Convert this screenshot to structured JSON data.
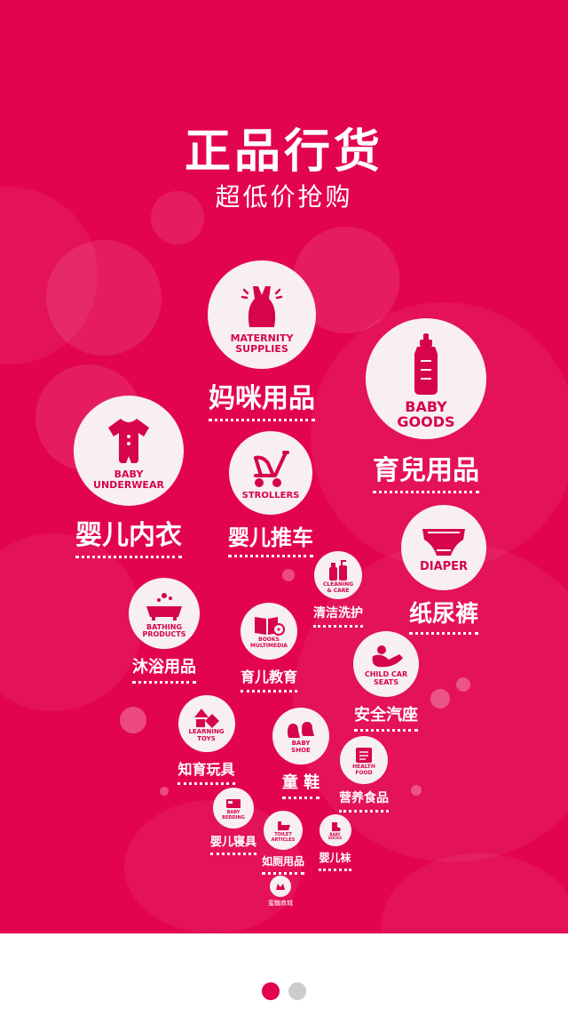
{
  "header": {
    "title": "正品行货",
    "subtitle": "超低价抢购"
  },
  "categories": [
    {
      "en": "MATERNITY\nSUPPLIES",
      "cn": "妈咪用品"
    },
    {
      "en": "BABY\nGOODS",
      "cn": "育兒用品"
    },
    {
      "en": "BABY\nUNDERWEAR",
      "cn": "婴儿内衣"
    },
    {
      "en": "STROLLERS",
      "cn": "婴儿推车"
    },
    {
      "en": "DIAPER",
      "cn": "纸尿裤"
    },
    {
      "en": "CLEANING\n& CARE",
      "cn": "清洁洗护"
    },
    {
      "en": "BATHING\nPRODUCTS",
      "cn": "沐浴用品"
    },
    {
      "en": "BOOKS\nMULTIMEDIA",
      "cn": "育儿教育"
    },
    {
      "en": "CHILD CAR\nSEATS",
      "cn": "安全汽座"
    },
    {
      "en": "LEARNING\nTOYS",
      "cn": "知育玩具"
    },
    {
      "en": "BABY\nSHOE",
      "cn": "童 鞋"
    },
    {
      "en": "HEALTH\nFOOD",
      "cn": "营养食品"
    },
    {
      "en": "BABY\nBEDDING",
      "cn": "婴儿寝具"
    },
    {
      "en": "TOILET\nARTICLES",
      "cn": "如厕用品"
    },
    {
      "en": "BABY\nSOCKS",
      "cn": "婴儿袜"
    },
    {
      "en": "",
      "cn": ""
    }
  ],
  "footer": {
    "logo_caption": "蜜糖商城"
  },
  "pager": {
    "count": 2,
    "active_index": 0,
    "active_color": "#e3044f",
    "inactive_color": "#cccccc"
  },
  "theme": {
    "background": "#e3044f",
    "circle": "#f7eff2",
    "accent": "#d6044a",
    "text": "#ffffff"
  },
  "icons": [
    "dress-icon",
    "baby-bottle-icon",
    "onesie-icon",
    "stroller-icon",
    "diaper-icon",
    "lotion-bottle-icon",
    "bathtub-icon",
    "book-disc-icon",
    "car-seat-icon",
    "toy-blocks-icon",
    "baby-shoes-icon",
    "food-can-icon",
    "bedding-icon",
    "potty-icon",
    "sock-icon",
    "logo-icon"
  ]
}
